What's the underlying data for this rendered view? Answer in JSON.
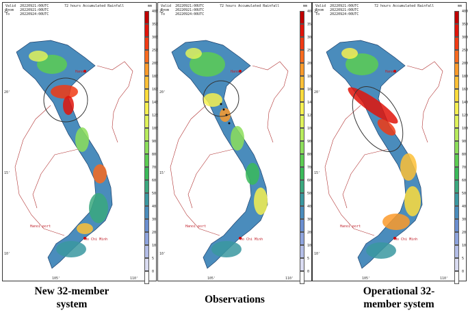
{
  "panels": [
    {
      "caption": "New 32-member system",
      "hdr_valid": "Valid  20220921:00UTC",
      "hdr_from": "From   20220921:00UTC",
      "hdr_to": "To     20220924:00UTC",
      "title": "72 hours Accumulated Rainfall",
      "unit": "mm",
      "lat_labels": [
        "25'",
        "20'",
        "15'",
        "10'"
      ],
      "lon_labels": [
        "105'",
        "110'"
      ],
      "city_1": "Hanoi",
      "city_2": "Ho Chi Minh",
      "city_3": "Hanoi port"
    },
    {
      "caption": "Observations",
      "hdr_valid": "Valid  20220921:00UTC",
      "hdr_from": "From   20220921:00UTC",
      "hdr_to": "To     20220924:00UTC",
      "title": "72 hours Accumulated Rainfall",
      "unit": "mm",
      "lat_labels": [
        "25'",
        "20'",
        "15'",
        "10'"
      ],
      "lon_labels": [
        "105'",
        "110'"
      ],
      "city_1": "Hanoi",
      "city_2": "Ho Chi Minh",
      "city_3": "Hanoi port"
    },
    {
      "caption": "Operational 32-member system",
      "hdr_valid": "Valid  20220921:00UTC",
      "hdr_from": "From   20220921:00UTC",
      "hdr_to": "To     20220924:00UTC",
      "title": "72 hours Accumulated Rainfall",
      "unit": "mm",
      "lat_labels": [
        "25'",
        "20'",
        "15'",
        "10'"
      ],
      "lon_labels": [
        "105'",
        "110'"
      ],
      "city_1": "Hanoi",
      "city_2": "Ho Chi Minh",
      "city_3": "Hanoi port"
    }
  ],
  "colorbar": {
    "levels": [
      "400",
      "350",
      "300",
      "250",
      "200",
      "180",
      "160",
      "140",
      "120",
      "100",
      "90",
      "80",
      "70",
      "60",
      "50",
      "40",
      "30",
      "20",
      "10",
      "5",
      "0"
    ],
    "colors": [
      "#c00000",
      "#e0140a",
      "#f03a14",
      "#f86a1e",
      "#fb9a2a",
      "#fdc036",
      "#fddc3c",
      "#f6f050",
      "#dff25a",
      "#b8ec5c",
      "#8cde5a",
      "#5ccc52",
      "#3aba5a",
      "#3aa87e",
      "#3a98a0",
      "#4a8cbc",
      "#6a8ed0",
      "#8ea4de",
      "#b4bee8",
      "#dadcf2",
      "#ffffff"
    ]
  },
  "captions": {
    "left_line1": "New 32-member",
    "left_line2": "system",
    "middle": "Observations",
    "right_line1": "Operational 32-",
    "right_line2": "member system"
  }
}
